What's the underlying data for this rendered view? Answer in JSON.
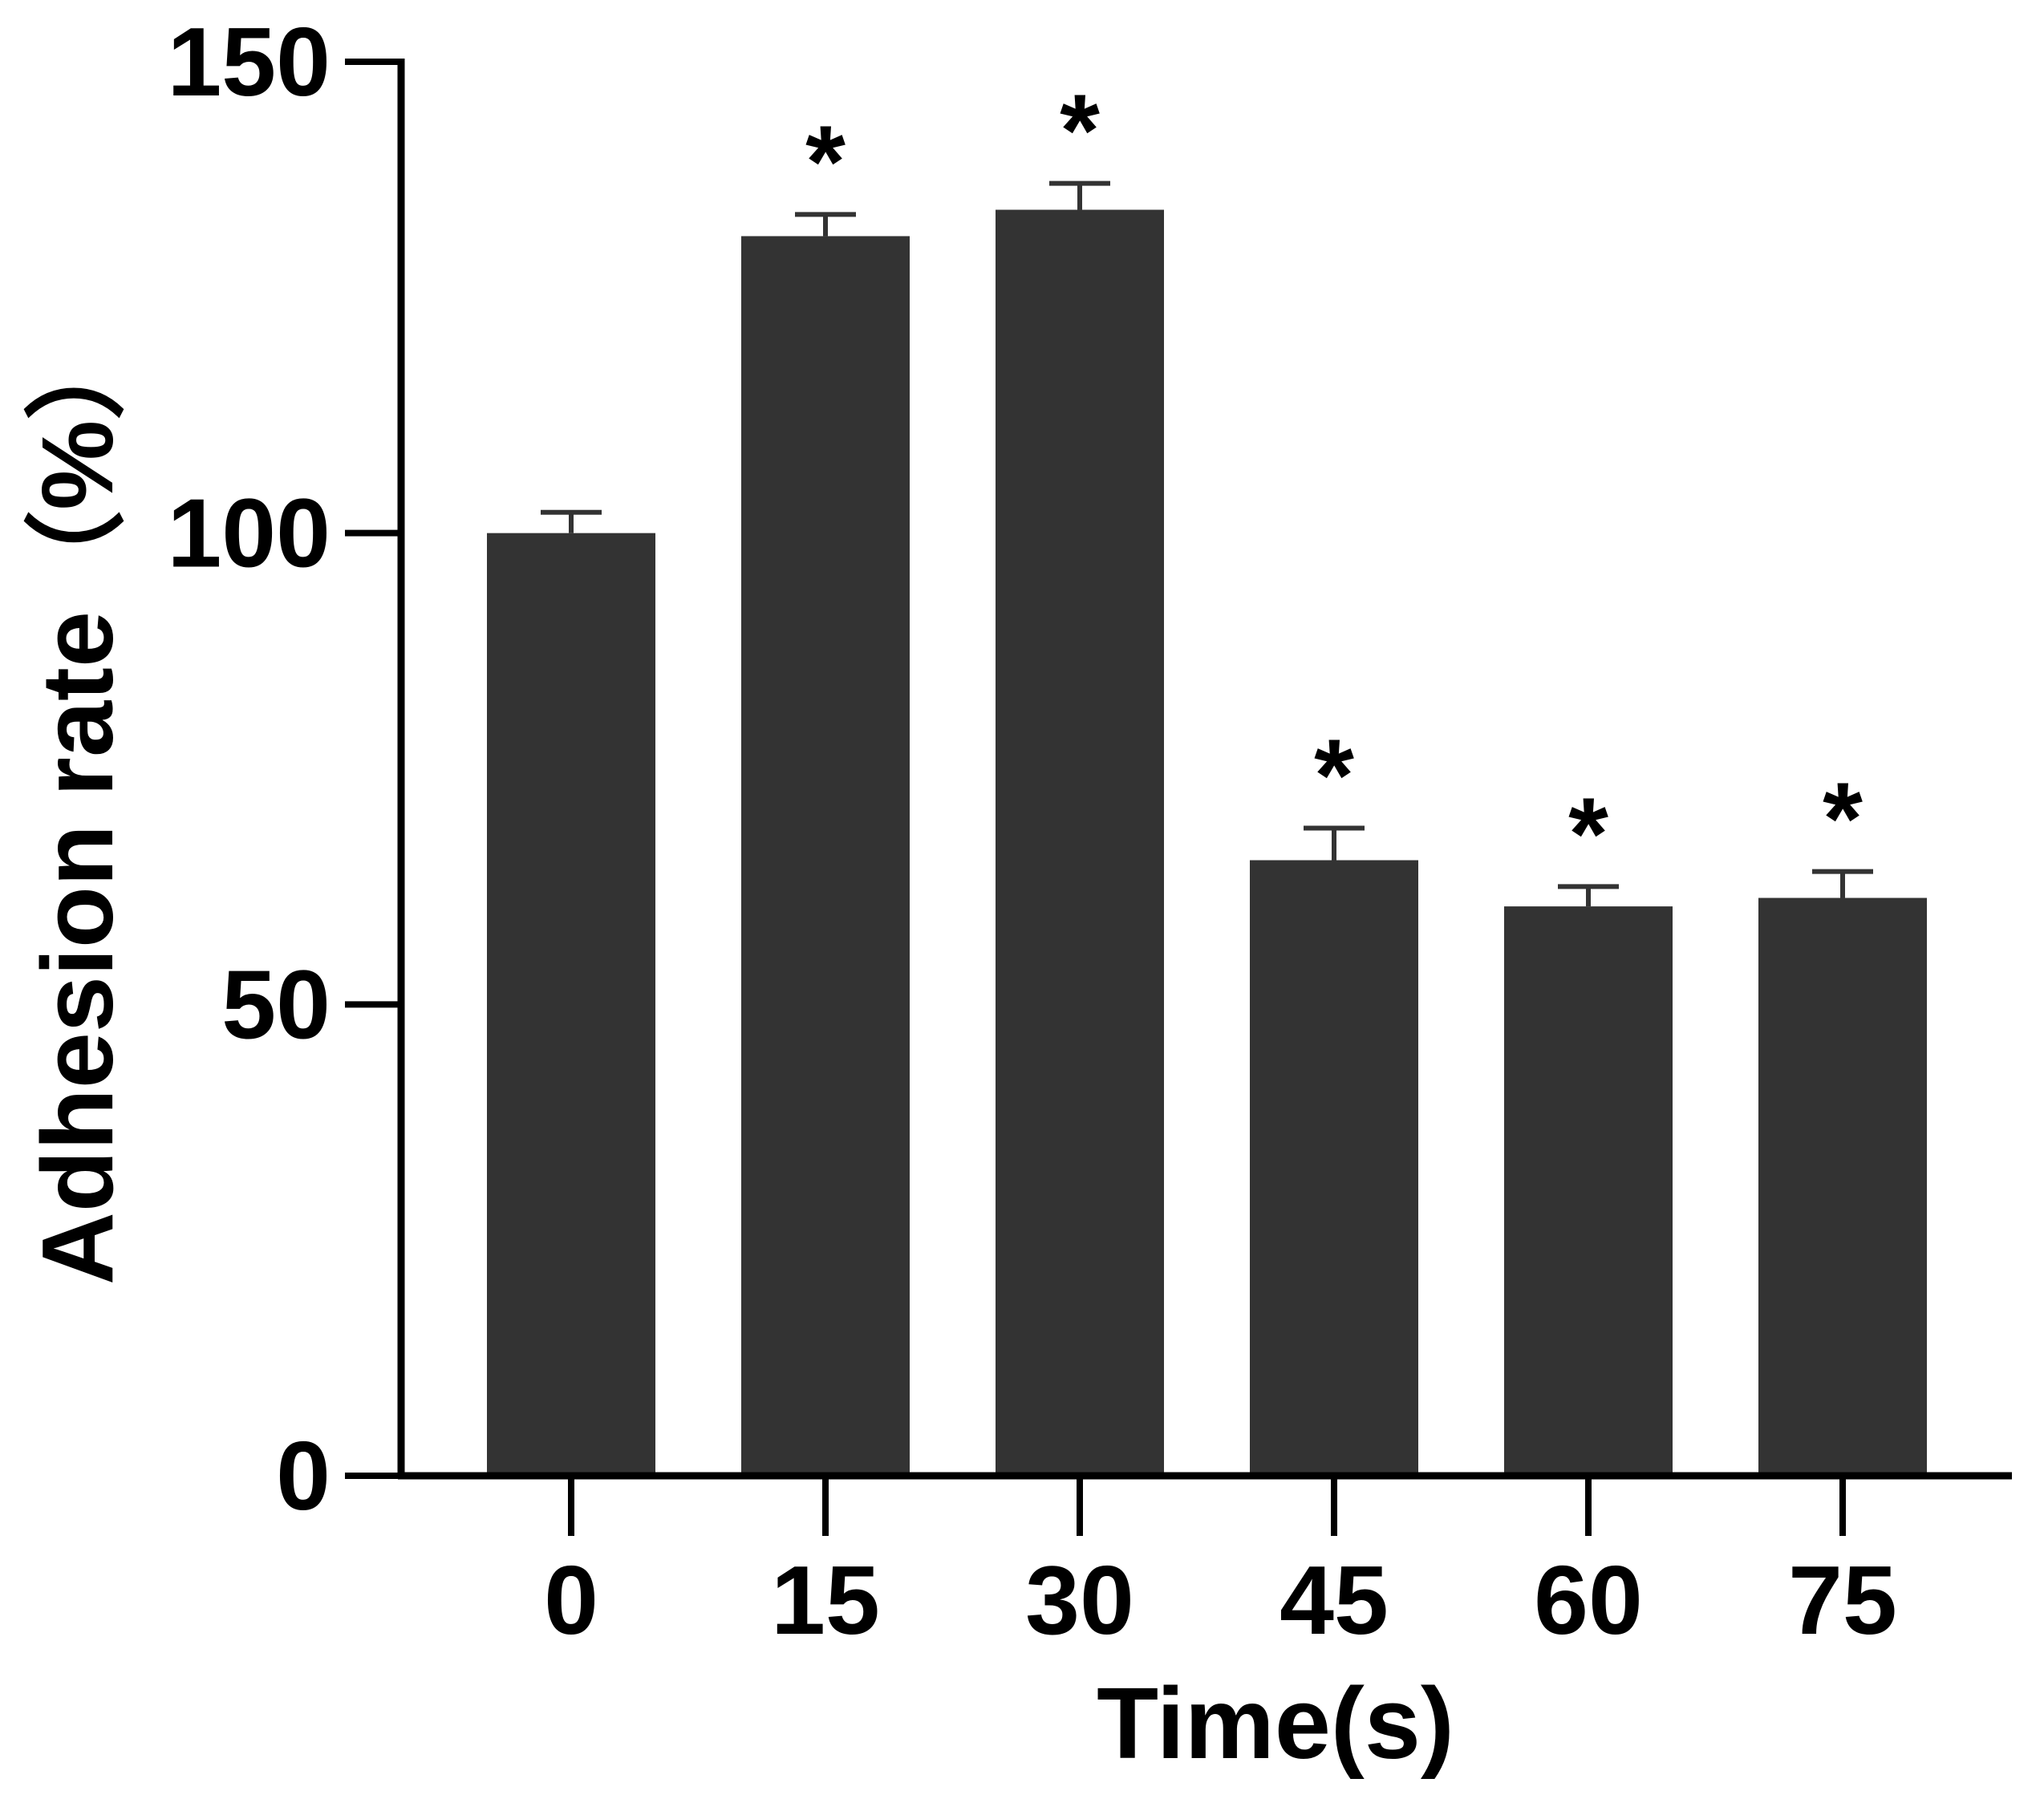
{
  "chart_data": {
    "type": "bar",
    "title": "",
    "xlabel": "Time(s)",
    "ylabel": "Adhesion rate（%）",
    "categories": [
      "0",
      "15",
      "30",
      "45",
      "60",
      "75"
    ],
    "series": [
      {
        "values": [
          100,
          131.5,
          134.3,
          65.3,
          60.4,
          61.3
        ],
        "error": [
          2.2,
          2.3,
          2.8,
          3.4,
          2.1,
          2.8
        ]
      }
    ],
    "significance": [
      "",
      "*",
      "*",
      "*",
      "*",
      "*"
    ],
    "ylim": [
      0,
      150
    ],
    "yticks": [
      0,
      50,
      100,
      150
    ],
    "grid": false,
    "legend": "none",
    "colors": {
      "bar": "#333333",
      "axis": "#000000",
      "text": "#000000"
    }
  }
}
